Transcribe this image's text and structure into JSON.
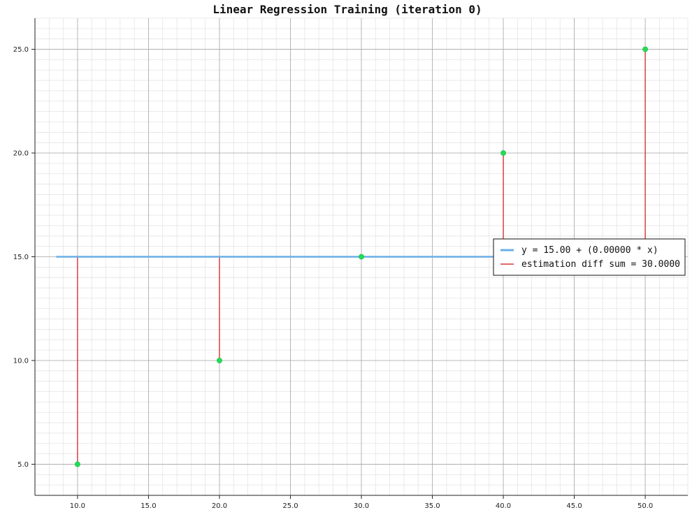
{
  "chart_data": {
    "type": "scatter",
    "title": "Linear Regression Training (iteration 0)",
    "xlabel": "",
    "ylabel": "",
    "xlim": [
      7.0,
      53.0
    ],
    "ylim": [
      3.5,
      26.5
    ],
    "x_ticks": [
      10.0,
      15.0,
      20.0,
      25.0,
      30.0,
      35.0,
      40.0,
      45.0,
      50.0
    ],
    "y_ticks": [
      5.0,
      10.0,
      15.0,
      20.0,
      25.0
    ],
    "x_tick_labels": [
      "10.0",
      "15.0",
      "20.0",
      "25.0",
      "30.0",
      "35.0",
      "40.0",
      "45.0",
      "50.0"
    ],
    "y_tick_labels": [
      "5.0",
      "10.0",
      "15.0",
      "20.0",
      "25.0"
    ],
    "grid": true,
    "points": {
      "x": [
        10,
        20,
        30,
        40,
        50
      ],
      "y": [
        5,
        10,
        15,
        20,
        25
      ],
      "color": "#22dd55"
    },
    "series": [
      {
        "name": "y = 15.00 + (0.00000 * x)",
        "type": "line",
        "x": [
          8.5,
          51.5
        ],
        "y": [
          15.0,
          15.0
        ],
        "color": "#6aaee8"
      },
      {
        "name": "estimation diff sum = 30.0000",
        "type": "residuals",
        "color": "#cc1111"
      }
    ],
    "legend_position": "right"
  }
}
